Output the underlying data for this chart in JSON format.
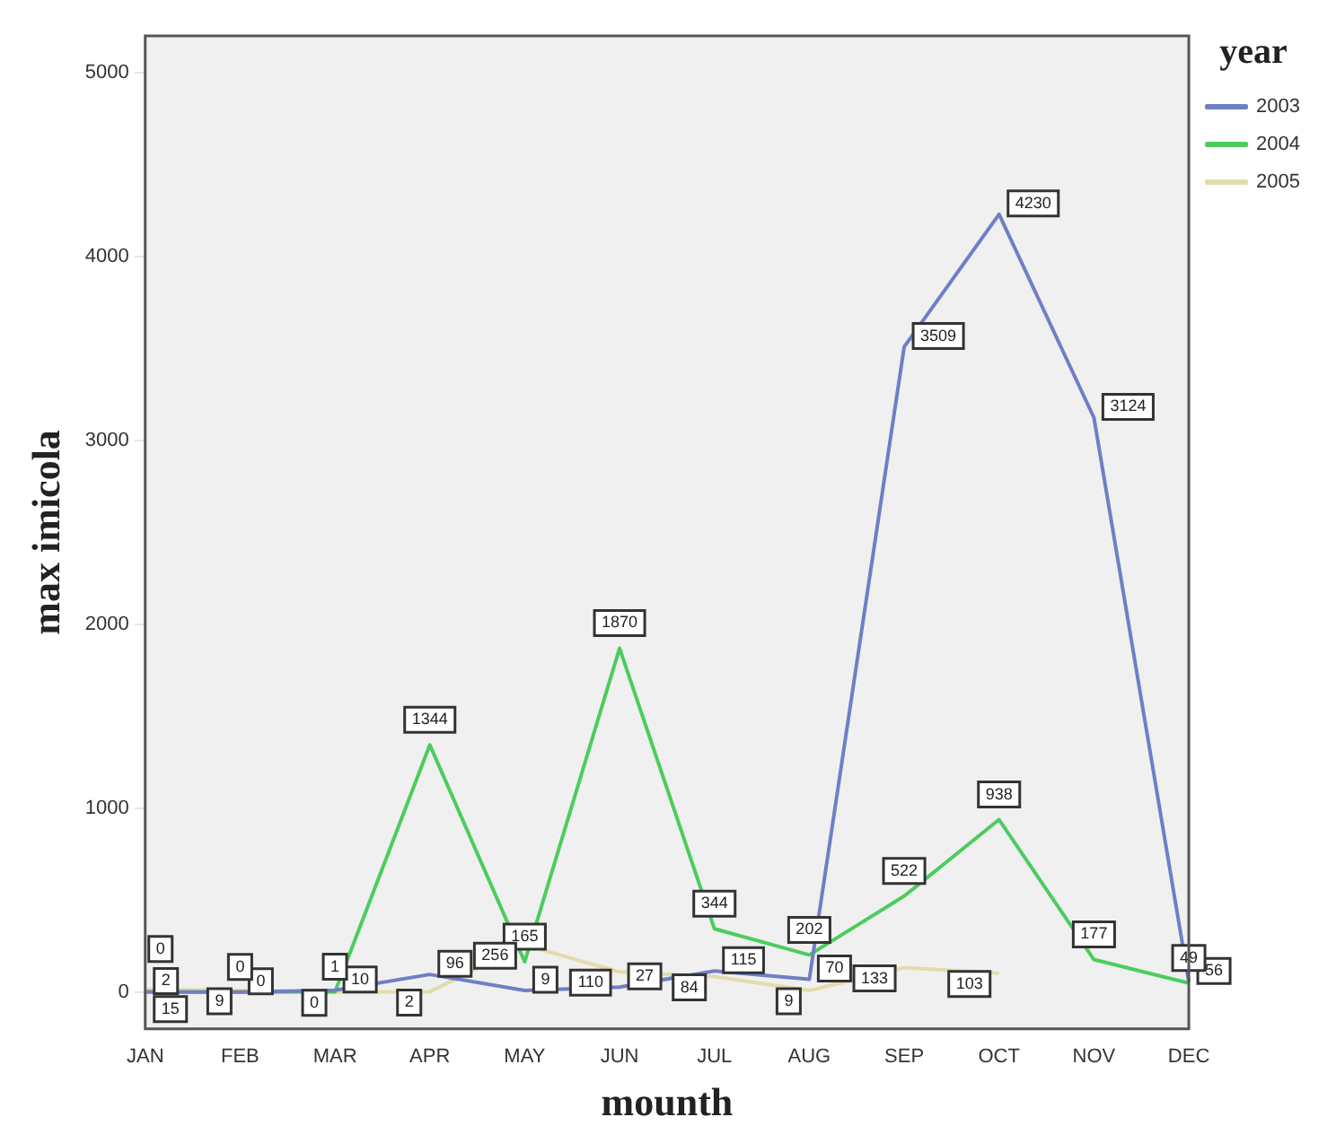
{
  "chart_data": {
    "type": "line",
    "xlabel": "mounth",
    "ylabel": "max imicola",
    "legend_title": "year",
    "legend": "right",
    "categories": [
      "JAN",
      "FEB",
      "MAR",
      "APR",
      "MAY",
      "JUN",
      "JUL",
      "AUG",
      "SEP",
      "OCT",
      "NOV",
      "DEC"
    ],
    "series": [
      {
        "name": "2003",
        "color": "#6f7fc6",
        "values": [
          2,
          0,
          10,
          96,
          9,
          27,
          115,
          70,
          3509,
          4230,
          3124,
          56
        ]
      },
      {
        "name": "2004",
        "color": "#4ccc5e",
        "values": [
          0,
          0,
          1,
          1344,
          165,
          1870,
          344,
          202,
          522,
          938,
          177,
          49
        ]
      },
      {
        "name": "2005",
        "color": "#e2dcaa",
        "values": [
          15,
          9,
          0,
          2,
          256,
          110,
          84,
          9,
          133,
          103,
          null,
          null
        ]
      }
    ],
    "ylim": [
      -200,
      5200
    ],
    "yticks": [
      0,
      1000,
      2000,
      3000,
      4000,
      5000
    ],
    "grid": false,
    "marker": "none",
    "line_style": "solid",
    "data_labels": true
  }
}
